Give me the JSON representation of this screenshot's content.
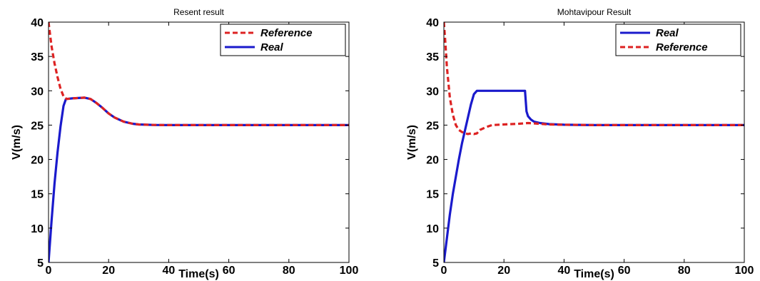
{
  "chart_data": [
    {
      "type": "line",
      "title": "Resent result",
      "xlabel": "Time(s)",
      "ylabel": "V(m/s)",
      "xlim": [
        0,
        100
      ],
      "ylim": [
        5,
        40
      ],
      "xticks": [
        0,
        20,
        40,
        60,
        80,
        100
      ],
      "yticks": [
        5,
        10,
        15,
        20,
        25,
        30,
        35,
        40
      ],
      "grid": false,
      "legend_position": "top-right",
      "series": [
        {
          "name": "Reference",
          "color": "#dd2222",
          "style": "dashed",
          "x": [
            0,
            1,
            2,
            3,
            4,
            5,
            6,
            8,
            10,
            12,
            14,
            16,
            18,
            20,
            22,
            25,
            28,
            30,
            35,
            40,
            50,
            60,
            70,
            80,
            90,
            100
          ],
          "y": [
            40,
            36.5,
            34,
            32,
            30.3,
            29.2,
            28.8,
            28.9,
            28.95,
            29,
            28.8,
            28.2,
            27.5,
            26.7,
            26.1,
            25.5,
            25.2,
            25.1,
            25.02,
            25,
            25,
            25,
            25,
            25,
            25,
            25
          ]
        },
        {
          "name": "Real",
          "color": "#1a1acc",
          "style": "solid",
          "x": [
            0,
            1,
            2,
            3,
            4,
            5,
            5.8,
            8,
            10,
            12,
            14,
            16,
            18,
            20,
            22,
            25,
            28,
            30,
            35,
            40,
            50,
            60,
            70,
            80,
            90,
            100
          ],
          "y": [
            5,
            11,
            16.5,
            21,
            24.8,
            27.8,
            28.8,
            28.9,
            28.95,
            29,
            28.8,
            28.2,
            27.5,
            26.7,
            26.1,
            25.5,
            25.2,
            25.1,
            25.02,
            25,
            25,
            25,
            25,
            25,
            25,
            25
          ]
        }
      ]
    },
    {
      "type": "line",
      "title": "Mohtavipour Result",
      "xlabel": "Time(s)",
      "ylabel": "V(m/s)",
      "xlim": [
        0,
        100
      ],
      "ylim": [
        5,
        40
      ],
      "xticks": [
        0,
        20,
        40,
        60,
        80,
        100
      ],
      "yticks": [
        5,
        10,
        15,
        20,
        25,
        30,
        35,
        40
      ],
      "grid": false,
      "legend_position": "top-right",
      "series": [
        {
          "name": "Real",
          "color": "#1a1acc",
          "style": "solid",
          "x": [
            0,
            1,
            2,
            3,
            4,
            5,
            6,
            7,
            8,
            9,
            10,
            11,
            15,
            20,
            25,
            27,
            27.5,
            28,
            29,
            30,
            32,
            35,
            40,
            50,
            60,
            70,
            80,
            90,
            100
          ],
          "y": [
            5,
            8.5,
            12,
            15,
            17.5,
            20,
            22.3,
            24.2,
            26.1,
            28,
            29.5,
            30,
            30,
            30,
            30,
            30,
            27,
            26.3,
            25.8,
            25.5,
            25.3,
            25.15,
            25.05,
            25,
            25,
            25,
            25,
            25,
            25
          ]
        },
        {
          "name": "Reference",
          "color": "#dd2222",
          "style": "dashed",
          "x": [
            0,
            0.5,
            1,
            2,
            3,
            4,
            5,
            6,
            7,
            8,
            9,
            10,
            11,
            12,
            14,
            16,
            20,
            25,
            28,
            30,
            35,
            40,
            50,
            60,
            70,
            80,
            90,
            100
          ],
          "y": [
            40,
            37,
            33.5,
            29,
            26.5,
            25,
            24.3,
            24,
            23.8,
            23.7,
            23.8,
            23.7,
            23.8,
            24.3,
            24.7,
            25,
            25.1,
            25.2,
            25.3,
            25.25,
            25.1,
            25.05,
            25,
            25,
            25,
            25,
            25,
            25
          ]
        }
      ]
    }
  ]
}
